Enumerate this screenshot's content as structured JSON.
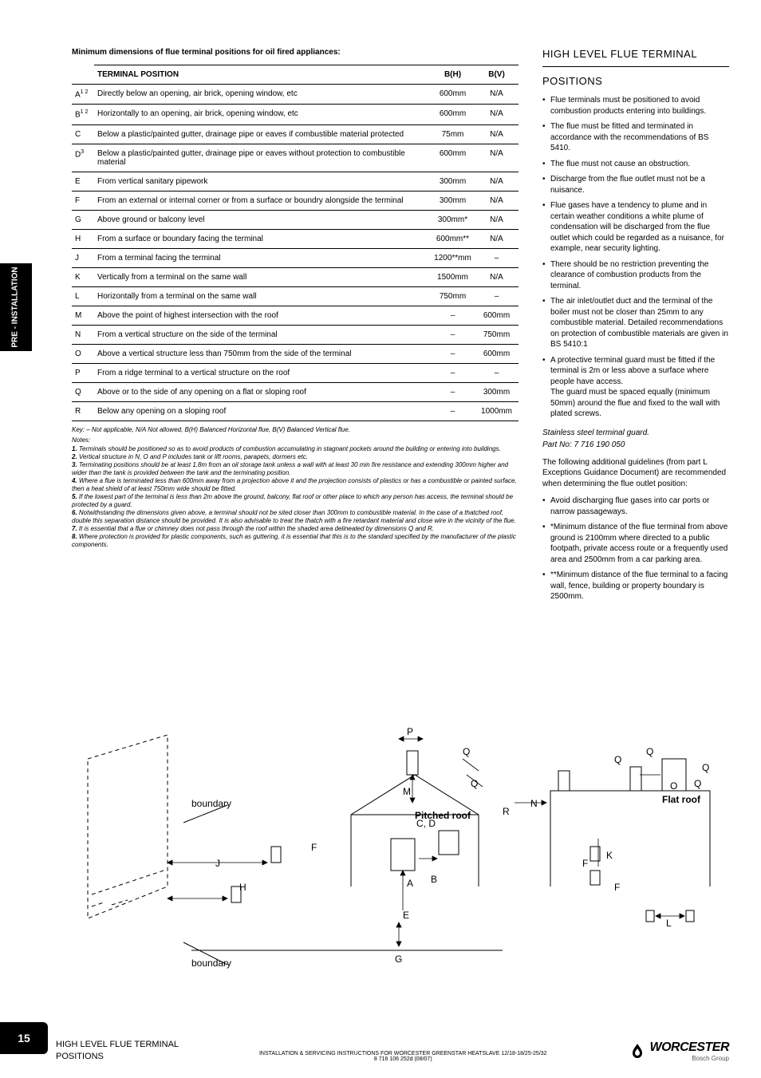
{
  "sideTab": "PRE - INSTALLATION",
  "pageNumber": "15",
  "tableTitle": "Minimum dimensions of flue terminal positions for oil fired appliances:",
  "tableHeaders": {
    "pos": "TERMINAL POSITION",
    "bh": "B(H)",
    "bv": "B(V)"
  },
  "rows": [
    {
      "code": "A",
      "sup": "1 2",
      "desc": "Directly below an opening, air brick, opening window, etc",
      "bh": "600mm",
      "bv": "N/A"
    },
    {
      "code": "B",
      "sup": "1 2",
      "desc": "Horizontally to an opening, air brick, opening window, etc",
      "bh": "600mm",
      "bv": "N/A"
    },
    {
      "code": "C",
      "sup": "",
      "desc": "Below a plastic/painted gutter, drainage pipe or eaves if combustible material protected",
      "bh": "75mm",
      "bv": "N/A"
    },
    {
      "code": "D",
      "sup": "3",
      "desc": "Below a plastic/painted gutter, drainage pipe or eaves without protection to combustible material",
      "bh": "600mm",
      "bv": "N/A"
    },
    {
      "code": "E",
      "sup": "",
      "desc": "From vertical sanitary pipework",
      "bh": "300mm",
      "bv": "N/A"
    },
    {
      "code": "F",
      "sup": "",
      "desc": "From an external or internal corner or from a surface or boundry alongside the terminal",
      "bh": "300mm",
      "bv": "N/A"
    },
    {
      "code": "G",
      "sup": "",
      "desc": "Above ground or balcony level",
      "bh": "300mm*",
      "bv": "N/A"
    },
    {
      "code": "H",
      "sup": "",
      "desc": "From a surface or boundary facing the terminal",
      "bh": "600mm**",
      "bv": "N/A"
    },
    {
      "code": "J",
      "sup": "",
      "desc": "From a terminal facing the terminal",
      "bh": "1200**mm",
      "bv": "–"
    },
    {
      "code": "K",
      "sup": "",
      "desc": "Vertically from a terminal on the same wall",
      "bh": "1500mm",
      "bv": "N/A"
    },
    {
      "code": "L",
      "sup": "",
      "desc": "Horizontally from a terminal on the same wall",
      "bh": "750mm",
      "bv": "–"
    },
    {
      "code": "M",
      "sup": "",
      "desc": "Above the point of highest intersection with the roof",
      "bh": "–",
      "bv": "600mm"
    },
    {
      "code": "N",
      "sup": "",
      "desc": "From a vertical structure on the side of the terminal",
      "bh": "–",
      "bv": "750mm"
    },
    {
      "code": "O",
      "sup": "",
      "desc": "Above a vertical structure less than 750mm from the side of the terminal",
      "bh": "–",
      "bv": "600mm"
    },
    {
      "code": "P",
      "sup": "",
      "desc": "From a ridge terminal to a vertical structure on the roof",
      "bh": "–",
      "bv": "–"
    },
    {
      "code": "Q",
      "sup": "",
      "desc": "Above or to the side of any opening on a flat or sloping roof",
      "bh": "–",
      "bv": "300mm"
    },
    {
      "code": "R",
      "sup": "",
      "desc": "Below any opening on a sloping roof",
      "bh": "–",
      "bv": "1000mm"
    }
  ],
  "keyLine": "Key: – Not applicable, N/A Not allowed, B(H) Balanced Horizontal flue, B(V) Balanced Vertical flue.",
  "notesLabel": "Notes:",
  "notes": [
    {
      "n": "1.",
      "t": "Terminals should be positioned so as to avoid products of combustion accumulating in stagnant pockets around the building or entering into buildings."
    },
    {
      "n": "2.",
      "t": "Vertical structure in N, O and P includes tank or lift rooms, parapets, dormers etc."
    },
    {
      "n": "3.",
      "t": "Terminating positions should be at least 1.8m from an oil storage tank unless a wall with at least 30 min fire resistance and extending 300mm higher and wider than the tank is provided between the tank and the terminating position."
    },
    {
      "n": "4.",
      "t": "Where a flue is terminated less than 600mm away from a projection above it and the projection consists of plastics or has a combustible or painted surface, then a heat shield of at least 750mm wide should be fitted."
    },
    {
      "n": "5.",
      "t": "If the lowest part of the terminal is less than 2m above the ground, balcony, flat roof or other place to which any person has access, the terminal should be protected by a guard."
    },
    {
      "n": "6.",
      "t": "Notwithstanding the dimensions given above, a terminal should not be sited closer than 300mm to combustible material. In the case of a thatched roof, double this separation distance should be provided. It is also advisable to treat the thatch with a fire retardant material and close wire in the vicinity of the flue."
    },
    {
      "n": "7.",
      "t": "It is essential that a flue or chimney does not pass through the roof within the shaded area delineated by dimensions Q and R."
    },
    {
      "n": "8.",
      "t": "Where protection is provided for plastic components, such as guttering, it is essential that this is to the standard specified by the manufacturer of the plastic components."
    }
  ],
  "right": {
    "heading": "HIGH LEVEL FLUE TERMINAL",
    "subheading": "POSITIONS",
    "bullets1": [
      "Flue terminals must be positioned to avoid combustion products entering into buildings.",
      "The flue must be fitted and terminated in accordance with the recommendations of BS 5410.",
      "The flue must not cause an obstruction.",
      "Discharge from the flue outlet must not be a nuisance.",
      "Flue gases have a tendency to plume and in certain weather conditions a white plume of condensation will be discharged from the flue outlet which could be regarded as a nuisance, for example, near security lighting.",
      "There should be no restriction preventing the clearance of combustion products from the terminal.",
      "The air inlet/outlet duct and the terminal of the boiler must not be closer than 25mm to any combustible material. Detailed recommendations on protection of combustible materials are given in BS 5410:1",
      "A protective terminal guard must be fitted if the terminal is 2m or less above a surface where people have access.\nThe guard must be spaced equally (minimum 50mm) around the flue and fixed to the wall with plated screws."
    ],
    "partInfo1": "Stainless steel terminal guard.",
    "partInfo2": "Part No: 7 716 190 050",
    "para": "The following additional guidelines (from part L Exceptions Guidance Document) are recommended when determining the flue outlet position:",
    "bullets2": [
      "Avoid discharging flue gases into car ports or narrow passageways.",
      "*Minimum distance of the flue terminal from above ground is 2100mm where directed to a public footpath, private access route or a frequently used area  and 2500mm from a car parking area.",
      "**Minimum distance of the flue terminal to a facing wall, fence, building or property boundary is 2500mm."
    ]
  },
  "diagram": {
    "labels": [
      "P",
      "Q",
      "Q",
      "Q",
      "Q",
      "Q",
      "Q",
      "O",
      "M",
      "N",
      "R",
      "C, D",
      "A",
      "B",
      "E",
      "F",
      "F",
      "G",
      "H",
      "J",
      "K",
      "L"
    ],
    "boundary": "boundary",
    "pitched": "Pitched roof",
    "flat": "Flat roof",
    "stroke": "#000000",
    "dash": "5,4"
  },
  "footer": {
    "leftTitle1": "HIGH LEVEL FLUE TERMINAL",
    "leftTitle2": "POSITIONS",
    "center1": "INSTALLATION & SERVICING INSTRUCTIONS FOR WORCESTER GREENSTAR HEATSLAVE 12/18-18/25-25/32",
    "center2": "8 716 106 252d (08/07)",
    "brand": "WORCESTER",
    "sub": "Bosch Group"
  }
}
